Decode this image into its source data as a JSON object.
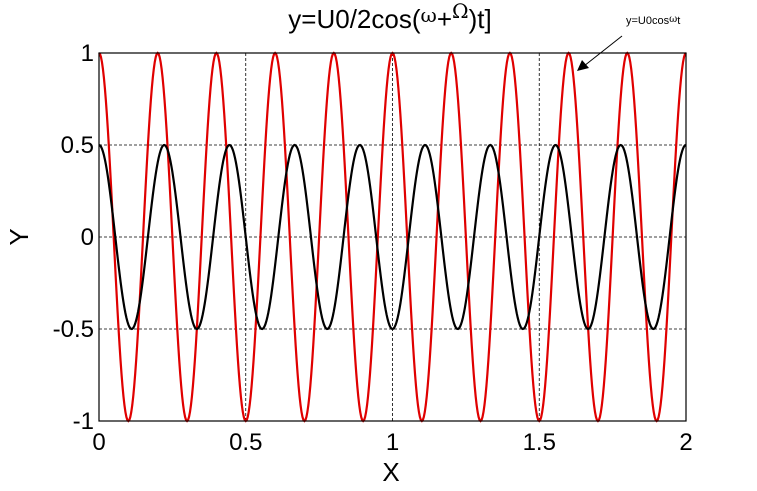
{
  "chart_data": {
    "type": "line",
    "title": {
      "pre": "y=U0/2cos(",
      "omega": "ω",
      "plus": "+",
      "bigomega": "Ω",
      "post": ")t]"
    },
    "xlabel": "X",
    "ylabel": "Y",
    "xlim": [
      0,
      2
    ],
    "ylim": [
      -1,
      1
    ],
    "x_ticks": [
      "0",
      "0.5",
      "1",
      "1.5",
      "2"
    ],
    "y_ticks": [
      "1",
      "0.5",
      "0",
      "-0.5",
      "-1"
    ],
    "x_tick_values": [
      0,
      0.5,
      1,
      1.5,
      2
    ],
    "y_tick_values": [
      1,
      0.5,
      0,
      -0.5,
      -1
    ],
    "grid": true,
    "grid_style": "dashed",
    "series": [
      {
        "color": "#e00000",
        "amplitude": 1.0,
        "period": 0.2,
        "phase": 0,
        "function": "cos",
        "x": [
          0,
          0.2,
          0.4,
          0.6,
          0.8,
          1.0,
          1.2,
          1.4,
          1.6,
          1.8,
          2.0
        ],
        "y_peaks": [
          1,
          1,
          1,
          1,
          1,
          1,
          1,
          1,
          1,
          1,
          1
        ]
      },
      {
        "color": "#000000",
        "amplitude": 0.5,
        "period": 0.2222,
        "phase": 0,
        "function": "cos",
        "x": [
          0,
          0.2222,
          0.4444,
          0.6667,
          0.8889,
          1.1111,
          1.3333,
          1.5556,
          1.7778,
          2.0
        ],
        "y_peaks": [
          0.5,
          0.5,
          0.5,
          0.5,
          0.5,
          0.5,
          0.5,
          0.5,
          0.5,
          0.5
        ]
      }
    ],
    "annotation": {
      "text_pre": "y=U0cos",
      "text_omega": "ω",
      "text_post": "t",
      "points_to_x": 1.6,
      "points_to_y": 0.9
    }
  }
}
